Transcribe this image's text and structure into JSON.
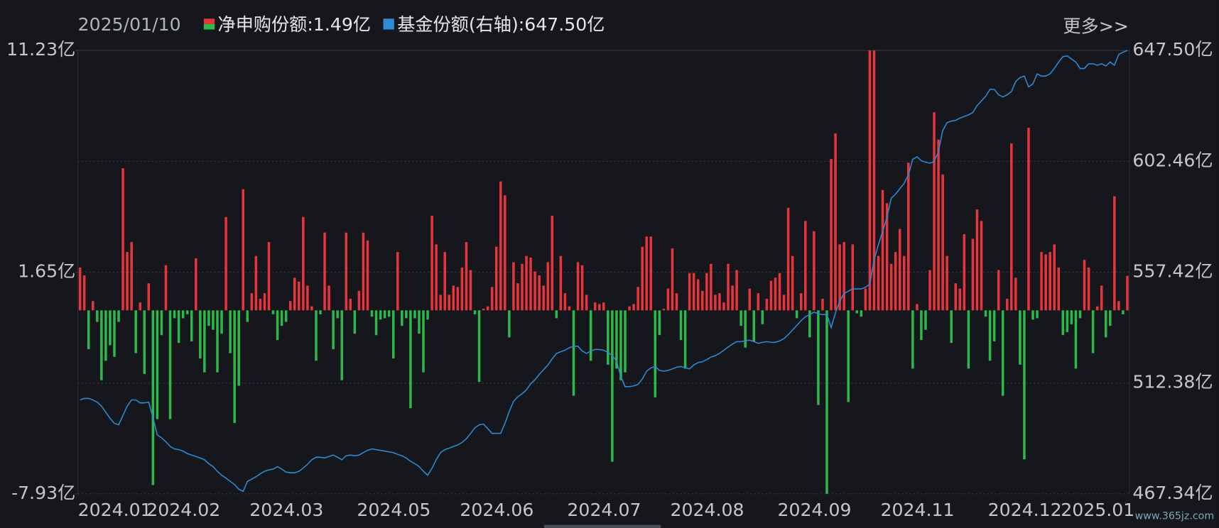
{
  "chart_data": {
    "type": "bar_line",
    "date": "2025/01/10",
    "more": "更多>>",
    "watermark": "www.365jz.com",
    "grid": true,
    "ylim": [
      -7.93,
      11.23
    ],
    "yticks": [
      {
        "value": 11.23,
        "label": "11.23亿"
      },
      {
        "value": 1.65,
        "label": "1.65亿"
      },
      {
        "value": -7.93,
        "label": "-7.93亿"
      }
    ],
    "y2lim": [
      467.34,
      647.5
    ],
    "y2ticks": [
      {
        "value": 647.5,
        "label": "647.50亿"
      },
      {
        "value": 602.46,
        "label": "602.46亿"
      },
      {
        "value": 557.42,
        "label": "557.42亿"
      },
      {
        "value": 512.38,
        "label": "512.38亿"
      },
      {
        "value": 467.34,
        "label": "467.34亿"
      }
    ],
    "categories": [
      "2024.01",
      null,
      null,
      null,
      null,
      null,
      null,
      null,
      null,
      null,
      null,
      null,
      null,
      null,
      null,
      null,
      "2024.02",
      null,
      null,
      null,
      null,
      null,
      null,
      null,
      null,
      null,
      null,
      null,
      null,
      null,
      null,
      null,
      null,
      null,
      null,
      null,
      null,
      null,
      null,
      null,
      "2024.03",
      null,
      null,
      null,
      null,
      null,
      null,
      null,
      null,
      null,
      null,
      null,
      null,
      null,
      null,
      null,
      null,
      null,
      null,
      null,
      null,
      null,
      null,
      null,
      null,
      "2024.05",
      null,
      null,
      null,
      null,
      null,
      null,
      null,
      null,
      null,
      null,
      null,
      null,
      null,
      null,
      null,
      null,
      null,
      null,
      null,
      null,
      null,
      null,
      null,
      "2024.06",
      null,
      null,
      null,
      null,
      null,
      null,
      null,
      null,
      null,
      null,
      null,
      null,
      null,
      null,
      null,
      null,
      null,
      null,
      null,
      null,
      null,
      null,
      null,
      null,
      "2024.07",
      null,
      null,
      null,
      null,
      null,
      null,
      null,
      null,
      null,
      null,
      null,
      null,
      null,
      null,
      null,
      null,
      null,
      null,
      null,
      null,
      null,
      null,
      null,
      "2024.08",
      null,
      null,
      null,
      null,
      null,
      null,
      null,
      null,
      null,
      null,
      null,
      null,
      null,
      null,
      null,
      null,
      null,
      null,
      null,
      null,
      null,
      null,
      null,
      null,
      "2024.09",
      null,
      null,
      null,
      null,
      null,
      null,
      null,
      null,
      null,
      null,
      null,
      null,
      null,
      null,
      null,
      null,
      null,
      null,
      null,
      null,
      null,
      null,
      null,
      "2024.11",
      null,
      null,
      null,
      null,
      null,
      null,
      null,
      null,
      null,
      null,
      null,
      null,
      null,
      null,
      null,
      null,
      null,
      null,
      null,
      null,
      null,
      null,
      null,
      null,
      "2024.12",
      null,
      null,
      null,
      null,
      null,
      null,
      null,
      null,
      null,
      null,
      null,
      null,
      null,
      null,
      null,
      null,
      "2025.01",
      null,
      null,
      null,
      null,
      null,
      null,
      null,
      null,
      null,
      null,
      null,
      null,
      null,
      null,
      null
    ],
    "series": [
      {
        "name": "净申购份额:1.49亿",
        "type": "bar",
        "color": "#e8353b",
        "negative_color": "#2fb84a",
        "values": [
          1.85,
          1.51,
          -1.68,
          0.4,
          -0.5,
          -3.02,
          -2.18,
          -1.51,
          -2.01,
          -0.5,
          6.14,
          2.52,
          2.95,
          -1.85,
          0.34,
          -2.75,
          1.17,
          -7.55,
          -4.7,
          -1.07,
          1.95,
          -4.7,
          -0.34,
          -1.41,
          -0.34,
          -0.17,
          -1.34,
          2.25,
          -2.08,
          -2.68,
          -0.67,
          -0.84,
          -2.68,
          -1.01,
          4.03,
          -1.85,
          -4.87,
          -3.26,
          5.23,
          -0.5,
          0.74,
          2.35,
          0.5,
          0.74,
          2.95,
          -0.17,
          -1.28,
          -0.67,
          -0.5,
          0.4,
          1.41,
          1.24,
          4.03,
          1.07,
          0.17,
          -2.18,
          -0.17,
          3.36,
          1.07,
          -1.68,
          -0.34,
          -3.02,
          3.36,
          0.5,
          -1.01,
          0.84,
          3.36,
          3.02,
          -0.27,
          -1.07,
          -0.4,
          -0.34,
          -0.27,
          -2.08,
          2.52,
          -0.67,
          -0.34,
          -4.23,
          -0.34,
          -1.01,
          -2.68,
          -0.4,
          4.09,
          2.85,
          0.67,
          2.52,
          0.67,
          1.07,
          1.01,
          1.85,
          2.95,
          1.74,
          -0.17,
          -3.09,
          0.07,
          0.17,
          1.01,
          2.75,
          5.57,
          4.97,
          -1.17,
          2.08,
          1.17,
          2.01,
          2.35,
          2.28,
          1.68,
          1.51,
          1.07,
          2.08,
          4.09,
          -0.34,
          2.35,
          0.74,
          0.17,
          -3.69,
          2.08,
          1.95,
          0.67,
          -2.18,
          0.34,
          0.27,
          0.34,
          -2.35,
          -6.54,
          -2.52,
          -3.02,
          -2.68,
          0.17,
          0.27,
          1.01,
          2.75,
          3.19,
          3.19,
          -3.76,
          -1.07,
          0.07,
          0.94,
          2.68,
          0.74,
          -1.28,
          -2.52,
          1.61,
          1.61,
          1.34,
          0.84,
          1.61,
          2.01,
          0.67,
          0.74,
          0.34,
          2.01,
          1.07,
          1.74,
          -0.67,
          -1.61,
          0.94,
          -1.34,
          0.74,
          -0.6,
          0.5,
          1.28,
          1.41,
          1.61,
          0.67,
          4.43,
          2.35,
          -0.34,
          0.74,
          3.86,
          -1.17,
          3.42,
          -4.09,
          0.5,
          -7.93,
          6.54,
          7.65,
          2.85,
          2.95,
          -3.96,
          2.85,
          -0.13,
          -0.27,
          0.94,
          11.23,
          11.23,
          2.35,
          5.2,
          4.63,
          2.01,
          2.52,
          3.52,
          2.35,
          6.38,
          -2.52,
          0.27,
          -1.28,
          -0.84,
          1.74,
          8.56,
          7.38,
          5.87,
          2.35,
          -1.41,
          1.17,
          0.94,
          3.29,
          -2.52,
          3.09,
          4.36,
          3.86,
          -0.27,
          -2.18,
          -1.34,
          1.74,
          -3.69,
          0.5,
          7.21,
          1.41,
          -2.35,
          -6.44,
          7.89,
          -0.4,
          -0.34,
          2.52,
          2.42,
          2.52,
          2.85,
          1.85,
          -1.07,
          -0.94,
          -0.6,
          -2.52,
          -0.34,
          2.18,
          1.85,
          -1.85,
          0.17,
          1.07,
          -1.17,
          -0.67,
          4.93,
          0.4,
          -0.17,
          1.49
        ]
      },
      {
        "name": "基金份额(右轴):647.50亿",
        "type": "line",
        "axis": "y2",
        "color": "#2e8bd6",
        "values": [
          505.5,
          506.1,
          506.1,
          505.5,
          504.6,
          503.0,
          500.5,
          498.0,
          496.0,
          495.4,
          499.2,
          503.0,
          505.5,
          505.5,
          504.3,
          504.3,
          504.6,
          498.3,
          491.3,
          490.1,
          488.5,
          486.6,
          485.6,
          485.3,
          484.7,
          483.7,
          483.1,
          482.5,
          481.9,
          481.2,
          479.6,
          478.4,
          476.5,
          474.9,
          473.7,
          472.4,
          471.1,
          469.2,
          468.3,
          472.4,
          473.3,
          474.3,
          475.5,
          476.5,
          477.1,
          477.4,
          478.4,
          477.4,
          476.2,
          475.9,
          475.9,
          476.5,
          477.8,
          479.3,
          481.2,
          482.2,
          482.2,
          481.9,
          482.5,
          483.1,
          482.2,
          481.2,
          482.8,
          483.1,
          482.8,
          483.1,
          484.1,
          485.0,
          485.6,
          485.3,
          485.0,
          484.7,
          484.4,
          484.1,
          483.4,
          482.8,
          481.9,
          480.6,
          479.6,
          478.4,
          476.5,
          474.9,
          477.7,
          481.2,
          484.1,
          485.3,
          485.9,
          486.6,
          487.2,
          488.2,
          489.7,
          491.9,
          494.2,
          495.4,
          495.7,
          493.8,
          491.9,
          491.9,
          491.9,
          496.0,
          500.8,
          504.9,
          506.8,
          508.0,
          509.6,
          512.1,
          513.7,
          515.9,
          517.8,
          519.7,
          522.2,
          524.4,
          525.1,
          525.7,
          526.7,
          527.3,
          527.3,
          525.4,
          524.4,
          525.4,
          526.0,
          526.0,
          525.7,
          524.8,
          523.5,
          521.3,
          515.0,
          510.9,
          510.9,
          511.2,
          511.8,
          514.0,
          517.2,
          518.5,
          519.1,
          517.5,
          517.2,
          517.5,
          518.1,
          518.8,
          519.1,
          518.5,
          518.1,
          519.7,
          520.7,
          521.0,
          521.9,
          522.9,
          523.5,
          524.4,
          525.7,
          527.0,
          528.2,
          529.2,
          529.2,
          529.5,
          529.8,
          529.2,
          528.5,
          528.9,
          529.2,
          528.9,
          528.9,
          529.5,
          530.4,
          532.0,
          533.9,
          535.8,
          537.7,
          539.3,
          540.2,
          541.2,
          540.5,
          540.2,
          540.2,
          534.9,
          540.9,
          545.6,
          548.7,
          549.7,
          550.6,
          550.6,
          550.6,
          551.3,
          552.5,
          562.3,
          568.6,
          574.0,
          579.7,
          587.5,
          589.1,
          591.3,
          593.5,
          597.0,
          603.3,
          604.3,
          602.7,
          602.1,
          601.7,
          602.4,
          606.5,
          615.0,
          618.2,
          618.8,
          619.1,
          620.0,
          620.7,
          621.3,
          622.3,
          625.1,
          627.0,
          628.9,
          631.7,
          631.7,
          629.5,
          628.6,
          629.5,
          630.8,
          634.9,
          636.5,
          637.1,
          632.7,
          633.9,
          638.0,
          637.1,
          637.1,
          638.0,
          640.2,
          642.8,
          645.0,
          645.3,
          644.0,
          642.8,
          640.2,
          640.2,
          642.1,
          642.1,
          641.5,
          642.1,
          641.2,
          642.8,
          641.5,
          645.9,
          646.8,
          647.5
        ]
      }
    ]
  }
}
